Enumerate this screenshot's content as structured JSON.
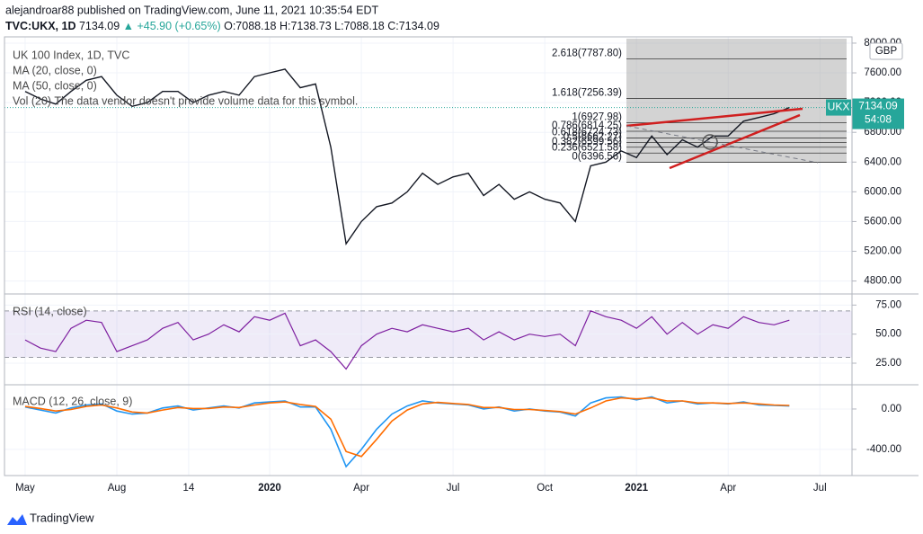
{
  "header": {
    "published": "alejandroar88 published on TradingView.com, June 11, 2021 10:35:54 EDT",
    "symbol": "TVC:UKX, 1D",
    "last": "7134.09",
    "change": "▲ +45.90 (+0.65%)",
    "open": "O:7088.18",
    "high": "H:7138.73",
    "low": "L:7088.18",
    "close": "C:7134.09"
  },
  "footer": {
    "brand": "TradingView"
  },
  "chart_data": [
    {
      "type": "line",
      "title": "UK 100 Index, 1D, TVC",
      "legend": [
        "MA (20, close, 0)",
        "MA (50, close, 0)",
        "Vol (20) The data vendor doesn't provide volume data for this symbol."
      ],
      "currency": "GBP",
      "color": "#131722",
      "values": [
        7350,
        7250,
        7180,
        7350,
        7500,
        7550,
        7300,
        7150,
        7200,
        7350,
        7350,
        7200,
        7300,
        7350,
        7300,
        7550,
        7600,
        7650,
        7400,
        7450,
        6600,
        5300,
        5600,
        5800,
        5850,
        6000,
        6250,
        6100,
        6200,
        6250,
        5950,
        6100,
        5900,
        6000,
        5900,
        5850,
        5600,
        6350,
        6400,
        6550,
        6460,
        6750,
        6500,
        6700,
        6600,
        6750,
        6750,
        6950,
        7000,
        7050,
        7134.09
      ],
      "ylim": [
        4650,
        8060
      ],
      "yticks": [
        {
          "value": 4800,
          "label": "4800.00"
        },
        {
          "value": 5200,
          "label": "5200.00"
        },
        {
          "value": 5600,
          "label": "5600.00"
        },
        {
          "value": 6000,
          "label": "6000.00"
        },
        {
          "value": 6400,
          "label": "6400.00"
        },
        {
          "value": 6800,
          "label": "6800.00"
        },
        {
          "value": 7200,
          "label": "7200.00"
        },
        {
          "value": 7600,
          "label": "7600.00"
        },
        {
          "value": 8000,
          "label": "8000.00"
        }
      ],
      "xlim": [
        -1.35,
        54.1
      ],
      "xticks": [
        {
          "value": 0,
          "label": "May"
        },
        {
          "value": 6,
          "label": "Aug"
        },
        {
          "value": 10.7,
          "label": "14"
        },
        {
          "value": 16,
          "label": "2020"
        },
        {
          "value": 22,
          "label": "Apr"
        },
        {
          "value": 28,
          "label": "Jul"
        },
        {
          "value": 34,
          "label": "Oct"
        },
        {
          "value": 40,
          "label": "2021"
        },
        {
          "value": 46,
          "label": "Apr"
        },
        {
          "value": 52,
          "label": "Jul"
        }
      ],
      "fib_levels": [
        {
          "value": 7787.8,
          "label": "2.618(7787.80)"
        },
        {
          "value": 7256.39,
          "label": "1.618(7256.39)"
        },
        {
          "value": 6927.98,
          "label": "1(6927.98)"
        },
        {
          "value": 6814.25,
          "label": "0.786(6814.25)"
        },
        {
          "value": 6724.73,
          "label": "0.618(6724.73)"
        },
        {
          "value": 6662.27,
          "label": "0.5(6662.27)"
        },
        {
          "value": 6599.56,
          "label": "0.382(6599.56)"
        },
        {
          "value": 6521.58,
          "label": "0.236(6521.58)"
        },
        {
          "value": 6396.56,
          "label": "0(6396.56)"
        }
      ],
      "price_label": {
        "tag": "UKX",
        "value": 7134.09,
        "countdown": "54:08"
      }
    },
    {
      "type": "line",
      "title": "RSI (14, close)",
      "color": "#7e1fa0",
      "values": [
        45,
        38,
        35,
        55,
        62,
        60,
        35,
        40,
        45,
        55,
        60,
        45,
        50,
        58,
        52,
        65,
        62,
        68,
        40,
        45,
        35,
        20,
        40,
        50,
        55,
        52,
        58,
        55,
        52,
        55,
        45,
        52,
        45,
        50,
        48,
        50,
        40,
        70,
        65,
        62,
        55,
        65,
        50,
        60,
        50,
        58,
        55,
        65,
        60,
        58,
        62
      ],
      "band": [
        30,
        70
      ],
      "ylim": [
        8,
        83
      ],
      "yticks": [
        {
          "value": 25,
          "label": "25.00"
        },
        {
          "value": 50,
          "label": "50.00"
        },
        {
          "value": 75,
          "label": "75.00"
        }
      ]
    },
    {
      "type": "line",
      "title": "MACD (12, 26, close, 9)",
      "series": [
        {
          "color": "#2196f3",
          "values": [
            20,
            -10,
            -40,
            10,
            40,
            50,
            -20,
            -50,
            -40,
            10,
            30,
            -10,
            10,
            30,
            10,
            60,
            70,
            80,
            20,
            20,
            -200,
            -570,
            -400,
            -200,
            -50,
            30,
            80,
            60,
            50,
            40,
            0,
            20,
            -20,
            0,
            -20,
            -30,
            -70,
            60,
            110,
            120,
            90,
            120,
            60,
            80,
            50,
            60,
            50,
            70,
            40,
            35,
            30
          ]
        },
        {
          "color": "#ff6d00",
          "values": [
            25,
            5,
            -20,
            -5,
            25,
            40,
            10,
            -30,
            -40,
            -10,
            15,
            5,
            5,
            20,
            15,
            40,
            60,
            70,
            45,
            25,
            -100,
            -420,
            -470,
            -300,
            -120,
            -10,
            50,
            65,
            55,
            45,
            15,
            15,
            -5,
            -5,
            -15,
            -25,
            -50,
            10,
            80,
            110,
            100,
            110,
            80,
            80,
            60,
            60,
            55,
            60,
            50,
            40,
            35
          ]
        }
      ],
      "ylim": [
        -650,
        222
      ],
      "yticks": [
        {
          "value": -400,
          "label": "-400.00"
        },
        {
          "value": 0,
          "label": "0.00"
        }
      ]
    }
  ]
}
